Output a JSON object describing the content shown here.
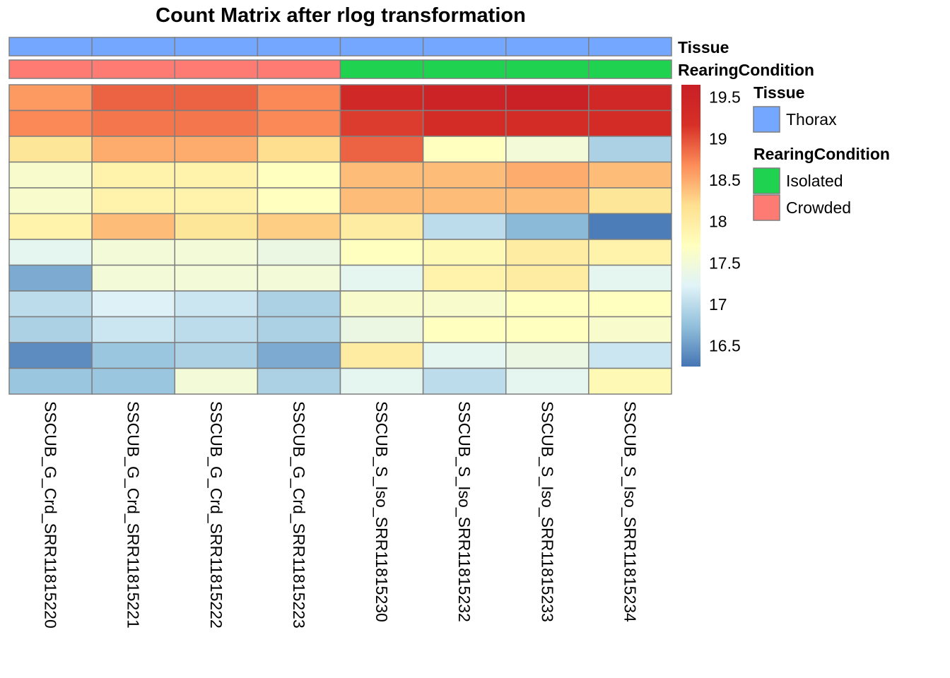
{
  "chart_data": {
    "type": "heatmap",
    "title": "Count Matrix after rlog transformation",
    "columns": [
      "SSCUB_G_Crd_SRR11815220",
      "SSCUB_G_Crd_SRR11815221",
      "SSCUB_G_Crd_SRR11815222",
      "SSCUB_G_Crd_SRR11815223",
      "SSCUB_S_Iso_SRR11815230",
      "SSCUB_S_Iso_SRR11815232",
      "SSCUB_S_Iso_SRR11815233",
      "SSCUB_S_Iso_SRR11815234"
    ],
    "values": [
      [
        18.6,
        18.9,
        18.9,
        18.7,
        19.4,
        19.5,
        19.6,
        19.4
      ],
      [
        18.7,
        18.8,
        18.8,
        18.7,
        19.1,
        19.3,
        19.3,
        19.3
      ],
      [
        18.1,
        18.5,
        18.5,
        18.2,
        18.9,
        17.7,
        17.5,
        16.9
      ],
      [
        17.6,
        17.9,
        17.9,
        17.7,
        18.4,
        18.4,
        18.5,
        18.4
      ],
      [
        17.6,
        17.9,
        17.9,
        17.7,
        18.4,
        18.4,
        18.4,
        18.1
      ],
      [
        17.9,
        18.4,
        18.1,
        18.3,
        18.0,
        17.0,
        16.7,
        16.3
      ],
      [
        17.3,
        17.5,
        17.5,
        17.4,
        17.7,
        17.8,
        18.0,
        17.9
      ],
      [
        16.6,
        17.5,
        17.5,
        17.5,
        17.3,
        17.9,
        18.0,
        17.3
      ],
      [
        17.0,
        17.2,
        17.1,
        16.9,
        17.6,
        17.6,
        17.7,
        17.7
      ],
      [
        16.9,
        17.1,
        17.0,
        16.9,
        17.4,
        17.7,
        17.7,
        17.6
      ],
      [
        16.4,
        16.8,
        16.9,
        16.6,
        18.0,
        17.3,
        17.4,
        17.1
      ],
      [
        16.8,
        16.8,
        17.5,
        16.9,
        17.3,
        17.0,
        17.3,
        17.8
      ]
    ],
    "annotations": [
      {
        "name": "Tissue",
        "values": [
          "Thorax",
          "Thorax",
          "Thorax",
          "Thorax",
          "Thorax",
          "Thorax",
          "Thorax",
          "Thorax"
        ]
      },
      {
        "name": "RearingCondition",
        "values": [
          "Crowded",
          "Crowded",
          "Crowded",
          "Crowded",
          "Isolated",
          "Isolated",
          "Isolated",
          "Isolated"
        ]
      }
    ],
    "colorbar": {
      "min": 16.25,
      "max": 19.65,
      "ticks": [
        "16.5",
        "17",
        "17.5",
        "18",
        "18.5",
        "19",
        "19.5"
      ]
    },
    "legend": [
      {
        "title": "Tissue",
        "entries": [
          {
            "label": "Thorax",
            "color": "#74a7ff"
          }
        ]
      },
      {
        "title": "RearingCondition",
        "entries": [
          {
            "label": "Isolated",
            "color": "#1fd24f"
          },
          {
            "label": "Crowded",
            "color": "#fd7b72"
          }
        ]
      }
    ],
    "palette": [
      "#4575b4",
      "#91bfdb",
      "#e0f3f8",
      "#ffffbf",
      "#fee090",
      "#fc8d59",
      "#d73027",
      "#c71f25"
    ],
    "cell_border_color": "#7f7f7f"
  }
}
